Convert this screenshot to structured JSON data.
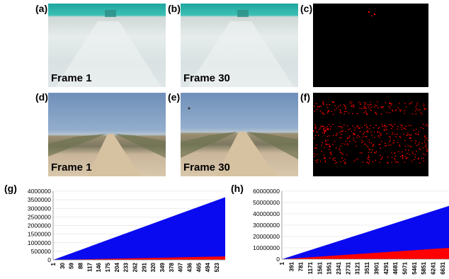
{
  "panels": {
    "a": {
      "label": "(a)",
      "caption": "Frame 1"
    },
    "b": {
      "label": "(b)",
      "caption": "Frame 30"
    },
    "c": {
      "label": "(c)"
    },
    "d": {
      "label": "(d)",
      "caption": "Frame 1"
    },
    "e": {
      "label": "(e)",
      "caption": "Frame 30"
    },
    "f": {
      "label": "(f)"
    },
    "g": {
      "label": "(g)"
    },
    "h": {
      "label": "(h)"
    }
  },
  "colors": {
    "blue_area": "#0a0af0",
    "red_area": "#ff0000",
    "gray_area": "#8c8c8c",
    "mask_background": "#000000",
    "mask_points": "#ff0000"
  },
  "chart_data": [
    {
      "type": "area",
      "panel": "g",
      "ylim": [
        0,
        4000000
      ],
      "y_ticks": [
        "0",
        "500000",
        "1000000",
        "1500000",
        "2000000",
        "2500000",
        "3000000",
        "3500000",
        "4000000"
      ],
      "x_ticks": [
        "1",
        "30",
        "59",
        "88",
        "117",
        "146",
        "175",
        "204",
        "233",
        "262",
        "291",
        "320",
        "349",
        "378",
        "407",
        "436",
        "465",
        "494",
        "523"
      ],
      "x_range": [
        1,
        550
      ],
      "series": [
        {
          "color": "blue",
          "values_at_x": {
            "1": 0,
            "550": 3650000
          }
        },
        {
          "color": "red",
          "values_at_x": {
            "1": 0,
            "550": 200000
          }
        },
        {
          "color": "gray",
          "values_at_x": {
            "1": 0,
            "550": 20000
          }
        }
      ]
    },
    {
      "type": "area",
      "panel": "h",
      "ylim": [
        0,
        60000000
      ],
      "y_ticks": [
        "0",
        "10000000",
        "20000000",
        "30000000",
        "40000000",
        "50000000",
        "60000000"
      ],
      "x_ticks": [
        "1",
        "391",
        "781",
        "1171",
        "1561",
        "1951",
        "2341",
        "2731",
        "3121",
        "3511",
        "3901",
        "4291",
        "4681",
        "5071",
        "5461",
        "5851",
        "6241",
        "6631"
      ],
      "x_range": [
        1,
        6900
      ],
      "series": [
        {
          "color": "blue",
          "values_at_x": {
            "1": 0,
            "6900": 47000000
          }
        },
        {
          "color": "red",
          "values_at_x": {
            "1": 0,
            "6900": 10000000
          }
        }
      ]
    }
  ]
}
